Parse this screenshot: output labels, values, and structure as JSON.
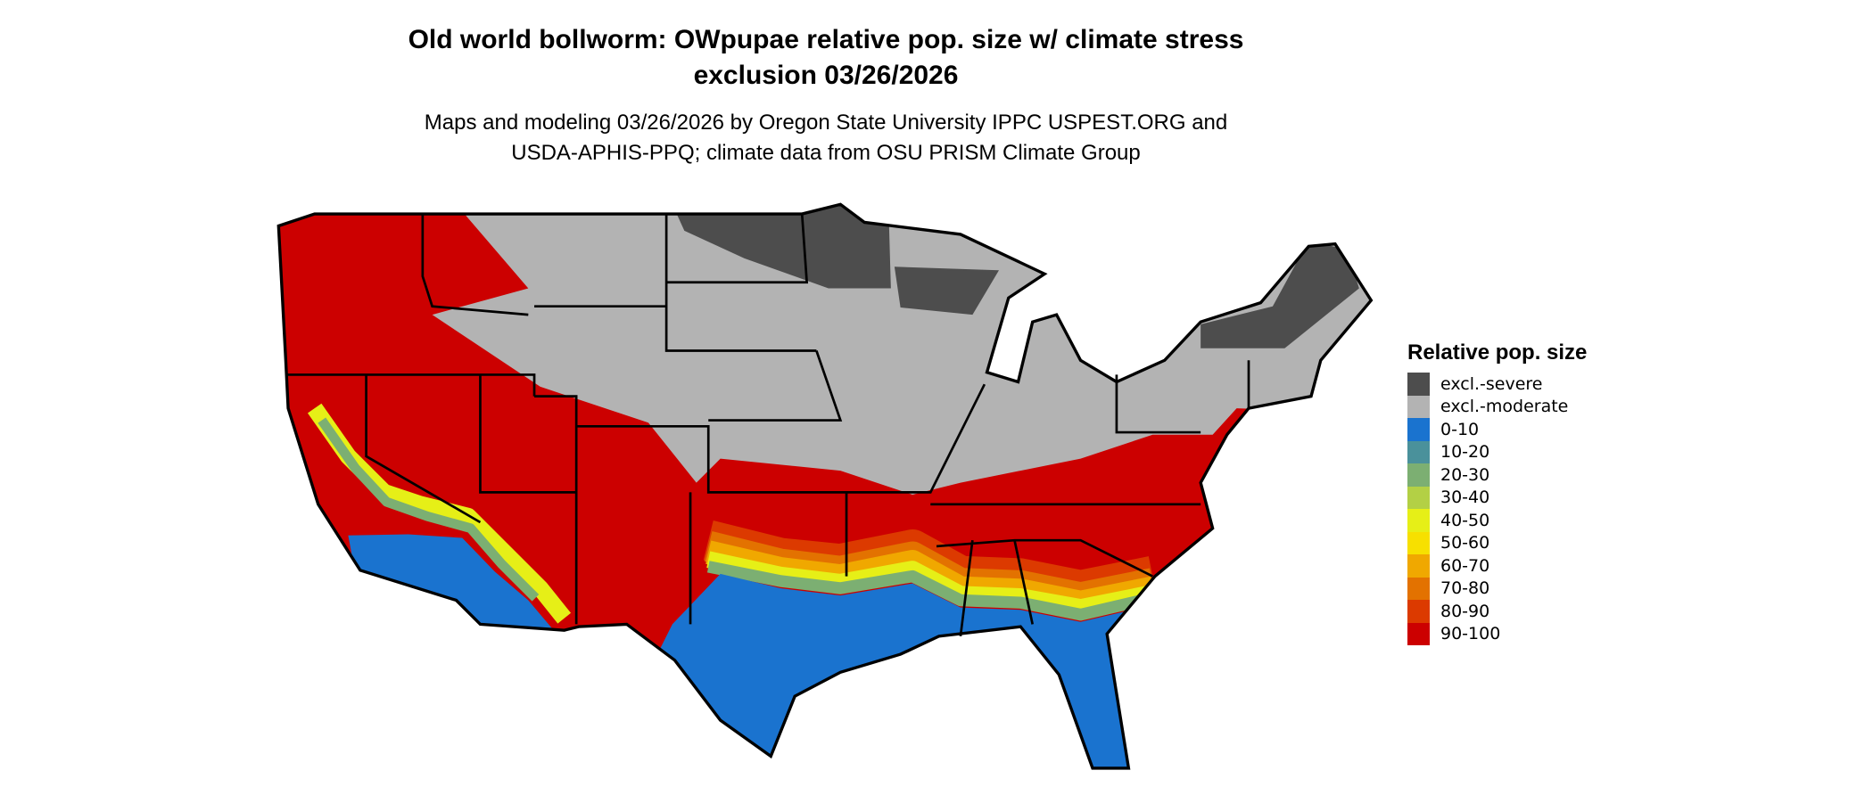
{
  "title_line1": "Old world bollworm: OWpupae relative pop. size w/ climate stress",
  "title_line2": "exclusion 03/26/2026",
  "subtitle_line1": "Maps and modeling 03/26/2026 by Oregon State University IPPC USPEST.ORG and",
  "subtitle_line2": "USDA-APHIS-PPQ; climate data from OSU PRISM Climate Group",
  "legend": {
    "title": "Relative pop. size",
    "items": [
      {
        "label": "excl.-severe",
        "color": "#4d4d4d"
      },
      {
        "label": "excl.-moderate",
        "color": "#b3b3b3"
      },
      {
        "label": "0-10",
        "color": "#1a73cf"
      },
      {
        "label": "10-20",
        "color": "#4a919b"
      },
      {
        "label": "20-30",
        "color": "#7caf72"
      },
      {
        "label": "30-40",
        "color": "#b3d045"
      },
      {
        "label": "40-50",
        "color": "#e6ef17"
      },
      {
        "label": "50-60",
        "color": "#f7e000"
      },
      {
        "label": "60-70",
        "color": "#f0a800"
      },
      {
        "label": "70-80",
        "color": "#e37200"
      },
      {
        "label": "80-90",
        "color": "#dc3a00"
      },
      {
        "label": "90-100",
        "color": "#cc0000"
      }
    ]
  },
  "map": {
    "region": "Contiguous United States",
    "border_color": "#000000"
  }
}
